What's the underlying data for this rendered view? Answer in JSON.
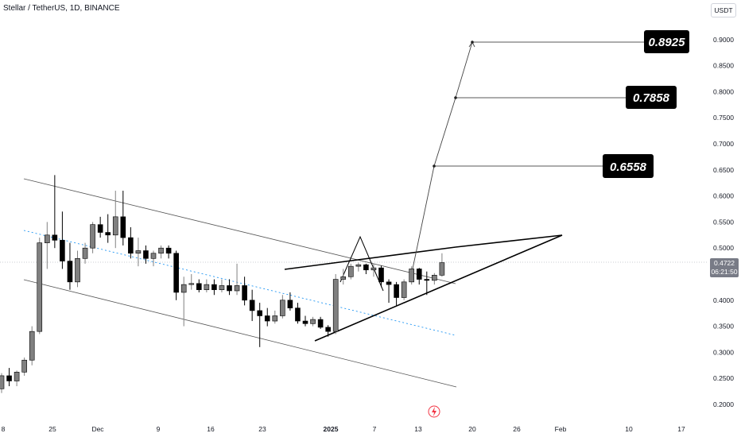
{
  "header": {
    "symbol": "Stellar / TetherUS, 1D, BINANCE",
    "currency": "USDT"
  },
  "colors": {
    "bull": "#808080",
    "bear": "#000000",
    "text": "#131722",
    "grid": "#e0e3eb",
    "midline": "#2196f3",
    "channel": "#555555"
  },
  "chart_data": {
    "type": "candlestick",
    "title": "Stellar / TetherUS, 1D, BINANCE",
    "y_axis": {
      "scale": "linear",
      "min": 0.17,
      "max": 0.93,
      "ticks": [
        "0.2000",
        "0.2500",
        "0.3000",
        "0.3500",
        "0.4000",
        "0.4500",
        "0.5000",
        "0.5500",
        "0.6000",
        "0.6500",
        "0.7000",
        "0.7500",
        "0.8000",
        "0.8500",
        "0.9000"
      ]
    },
    "x_axis": {
      "ticks": [
        "8",
        "25",
        "Dec",
        "9",
        "16",
        "23",
        "2025",
        "7",
        "13",
        "20",
        "26",
        "Feb",
        "10",
        "17"
      ],
      "bold_ticks": [
        "2025"
      ]
    },
    "current_price": {
      "value": "0.4722",
      "countdown": "06:21:50"
    },
    "targets": [
      "0.8925",
      "0.7858",
      "0.6558"
    ],
    "candles": [
      [
        0.23,
        0.26,
        0.222,
        0.255
      ],
      [
        0.255,
        0.27,
        0.235,
        0.245
      ],
      [
        0.245,
        0.265,
        0.235,
        0.262
      ],
      [
        0.262,
        0.29,
        0.255,
        0.285
      ],
      [
        0.285,
        0.35,
        0.275,
        0.34
      ],
      [
        0.34,
        0.52,
        0.335,
        0.51
      ],
      [
        0.51,
        0.55,
        0.46,
        0.525
      ],
      [
        0.525,
        0.64,
        0.5,
        0.515
      ],
      [
        0.515,
        0.57,
        0.46,
        0.475
      ],
      [
        0.475,
        0.51,
        0.42,
        0.435
      ],
      [
        0.435,
        0.495,
        0.425,
        0.48
      ],
      [
        0.48,
        0.51,
        0.47,
        0.5
      ],
      [
        0.5,
        0.55,
        0.49,
        0.545
      ],
      [
        0.545,
        0.56,
        0.52,
        0.53
      ],
      [
        0.53,
        0.565,
        0.51,
        0.525
      ],
      [
        0.525,
        0.61,
        0.5,
        0.56
      ],
      [
        0.56,
        0.61,
        0.505,
        0.52
      ],
      [
        0.52,
        0.54,
        0.48,
        0.49
      ],
      [
        0.49,
        0.52,
        0.465,
        0.495
      ],
      [
        0.495,
        0.505,
        0.47,
        0.48
      ],
      [
        0.48,
        0.495,
        0.465,
        0.49
      ],
      [
        0.49,
        0.505,
        0.48,
        0.5
      ],
      [
        0.5,
        0.505,
        0.48,
        0.49
      ],
      [
        0.49,
        0.495,
        0.4,
        0.415
      ],
      [
        0.415,
        0.445,
        0.35,
        0.43
      ],
      [
        0.43,
        0.45,
        0.42,
        0.432
      ],
      [
        0.432,
        0.44,
        0.415,
        0.42
      ],
      [
        0.42,
        0.44,
        0.415,
        0.43
      ],
      [
        0.43,
        0.44,
        0.41,
        0.42
      ],
      [
        0.42,
        0.44,
        0.415,
        0.428
      ],
      [
        0.428,
        0.44,
        0.41,
        0.418
      ],
      [
        0.418,
        0.47,
        0.41,
        0.428
      ],
      [
        0.428,
        0.445,
        0.39,
        0.4
      ],
      [
        0.4,
        0.42,
        0.36,
        0.38
      ],
      [
        0.38,
        0.395,
        0.31,
        0.37
      ],
      [
        0.37,
        0.385,
        0.35,
        0.36
      ],
      [
        0.36,
        0.38,
        0.355,
        0.37
      ],
      [
        0.37,
        0.41,
        0.365,
        0.4
      ],
      [
        0.4,
        0.415,
        0.38,
        0.385
      ],
      [
        0.385,
        0.395,
        0.355,
        0.36
      ],
      [
        0.36,
        0.37,
        0.35,
        0.355
      ],
      [
        0.355,
        0.368,
        0.35,
        0.363
      ],
      [
        0.363,
        0.368,
        0.345,
        0.348
      ],
      [
        0.348,
        0.352,
        0.33,
        0.34
      ],
      [
        0.34,
        0.45,
        0.335,
        0.44
      ],
      [
        0.44,
        0.46,
        0.43,
        0.445
      ],
      [
        0.445,
        0.47,
        0.44,
        0.465
      ],
      [
        0.465,
        0.472,
        0.455,
        0.468
      ],
      [
        0.468,
        0.47,
        0.45,
        0.458
      ],
      [
        0.458,
        0.47,
        0.445,
        0.462
      ],
      [
        0.462,
        0.466,
        0.425,
        0.435
      ],
      [
        0.435,
        0.44,
        0.395,
        0.43
      ],
      [
        0.43,
        0.435,
        0.39,
        0.405
      ],
      [
        0.405,
        0.44,
        0.4,
        0.435
      ],
      [
        0.435,
        0.465,
        0.43,
        0.46
      ],
      [
        0.46,
        0.462,
        0.43,
        0.44
      ],
      [
        0.44,
        0.455,
        0.41,
        0.438
      ],
      [
        0.438,
        0.452,
        0.43,
        0.448
      ],
      [
        0.448,
        0.49,
        0.445,
        0.472
      ]
    ]
  }
}
